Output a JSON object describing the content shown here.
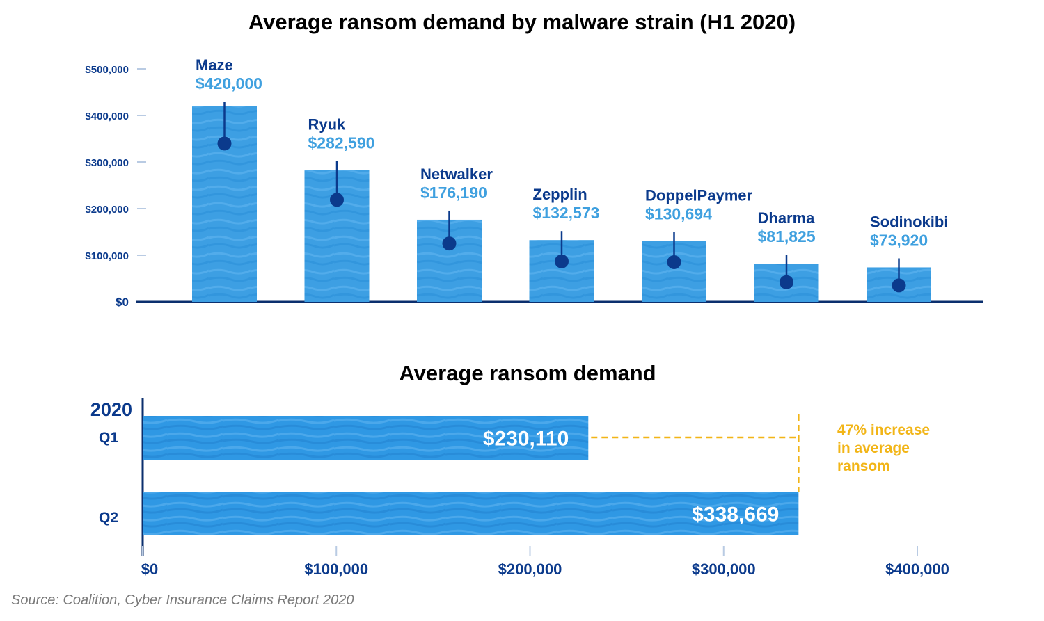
{
  "chart_data": [
    {
      "type": "bar",
      "title": "Average ransom demand by malware strain (H1 2020)",
      "categories": [
        "Maze",
        "Ryuk",
        "Netwalker",
        "Zepplin",
        "DoppelPaymer",
        "Dharma",
        "Sodinokibi"
      ],
      "values": [
        420000,
        282590,
        176190,
        132573,
        130694,
        81825,
        73920
      ],
      "value_labels": [
        "$420,000",
        "$282,590",
        "$176,190",
        "$132,573",
        "$130,694",
        "$81,825",
        "$73,920"
      ],
      "y_ticks": [
        0,
        100000,
        200000,
        300000,
        400000,
        500000
      ],
      "y_tick_labels": [
        "$0",
        "$100,000",
        "$200,000",
        "$300,000",
        "$400,000",
        "$500,000"
      ],
      "ylim": [
        0,
        500000
      ],
      "colors": {
        "bar": "#3d9fe3",
        "label_name": "#0b3a8c",
        "label_value": "#3fa0df",
        "dot": "#0b3a8c",
        "axis": "#0b2f6e"
      }
    },
    {
      "type": "bar",
      "orientation": "horizontal",
      "title": "Average ransom demand",
      "group_label": "2020",
      "categories": [
        "Q1",
        "Q2"
      ],
      "values": [
        230110,
        338669
      ],
      "value_labels": [
        "$230,110",
        "$338,669"
      ],
      "x_ticks": [
        0,
        100000,
        200000,
        300000,
        400000
      ],
      "x_tick_labels": [
        "$0",
        "$100,000",
        "$200,000",
        "$300,000",
        "$400,000"
      ],
      "xlim": [
        0,
        400000
      ],
      "annotation": [
        "47% increase",
        "in average",
        "ransom"
      ],
      "colors": {
        "bar": "#2f98e4",
        "annotation": "#f2b517",
        "axis": "#0b2f6e",
        "tick_label": "#0b3a8c"
      }
    }
  ],
  "source": "Source: Coalition, Cyber Insurance Claims Report 2020"
}
